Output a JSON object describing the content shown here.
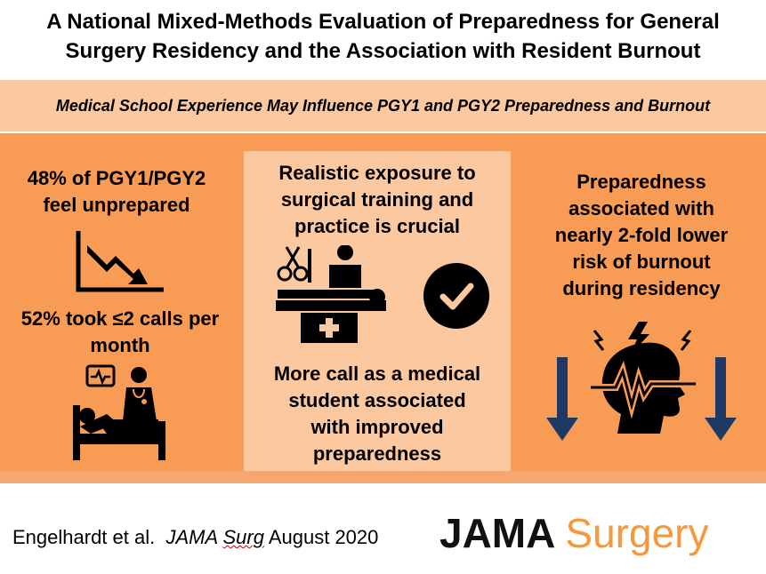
{
  "title_line1": "A National Mixed-Methods Evaluation of Preparedness for General",
  "title_line2": "Surgery Residency and the Association with Resident Burnout",
  "subtitle": "Medical School Experience May Influence PGY1 and PGY2 Preparedness and Burnout",
  "left_panel": {
    "stat1_line1": "48% of PGY1/PGY2",
    "stat1_line2": "feel unprepared",
    "stat2_line1": "52% took ≤2 calls per",
    "stat2_line2": "month"
  },
  "center_panel": {
    "exposure_line1": "Realistic exposure to",
    "exposure_line2": "surgical training and",
    "exposure_line3": "practice is crucial",
    "call_line1": "More call as a medical",
    "call_line2": "student associated",
    "call_line3": "with improved",
    "call_line4": "preparedness"
  },
  "right_panel": {
    "line1": "Preparedness",
    "line2": "associated with",
    "line3": "nearly 2-fold lower",
    "line4": "risk of burnout",
    "line5": "during residency"
  },
  "footer": {
    "authors": "Engelhardt et al.",
    "journal_part1": "JAMA",
    "journal_part2": "Surg",
    "date": "August 2020",
    "logo_jama": "JAMA",
    "logo_surgery": "Surgery"
  },
  "icons": {
    "declining_chart": "declining-chart-icon",
    "hospital_bed_doctor": "hospital-bed-doctor-icon",
    "surgery_table": "surgery-table-icon",
    "checkmark": "checkmark-circle-icon",
    "burnout_head": "burnout-head-icon",
    "down_arrow": "down-arrow-icon"
  },
  "colors": {
    "orange_dark": "#f79b55",
    "orange_light": "#fbc8a0",
    "logo_orange": "#f39a3e",
    "arrow_blue": "#1f3864"
  }
}
